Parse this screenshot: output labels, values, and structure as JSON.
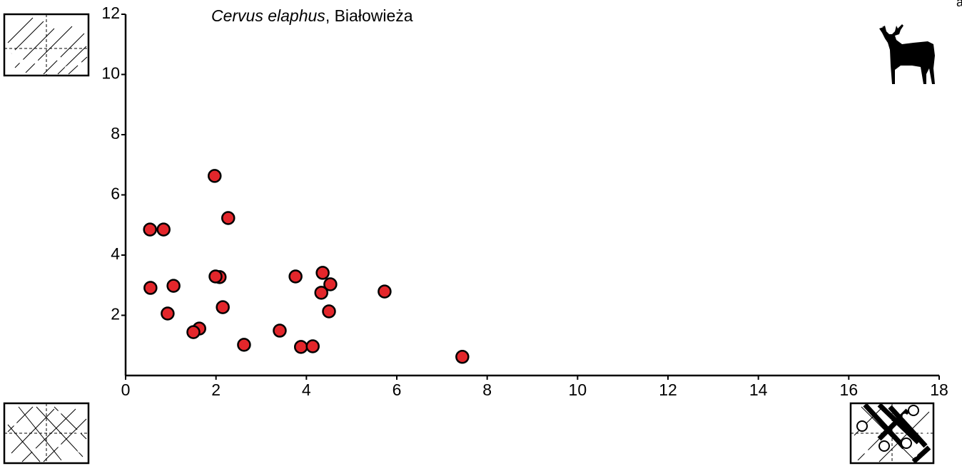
{
  "chart_data": {
    "type": "scatter",
    "title": {
      "species": "Cervus elaphus",
      "rest": ", Białowieża"
    },
    "panel_label": "a",
    "x": [
      0.54,
      0.84,
      0.55,
      1.06,
      0.93,
      1.97,
      2.27,
      2.08,
      1.99,
      2.15,
      1.63,
      1.5,
      2.62,
      3.41,
      3.76,
      4.36,
      4.33,
      4.53,
      4.5,
      3.88,
      4.14,
      5.73,
      7.45
    ],
    "y": [
      4.85,
      4.85,
      2.91,
      2.98,
      2.06,
      6.63,
      5.23,
      3.27,
      3.29,
      2.27,
      1.56,
      1.44,
      1.02,
      1.49,
      3.29,
      3.41,
      2.75,
      3.03,
      2.13,
      0.95,
      0.97,
      2.79,
      0.62
    ],
    "color": "#e3262b",
    "xlim": [
      0,
      18
    ],
    "ylim": [
      0,
      12
    ],
    "xticks": [
      0,
      2,
      4,
      6,
      8,
      10,
      12,
      14,
      16,
      18
    ],
    "yticks": [
      2,
      4,
      6,
      8,
      10,
      12
    ],
    "grid": false
  }
}
